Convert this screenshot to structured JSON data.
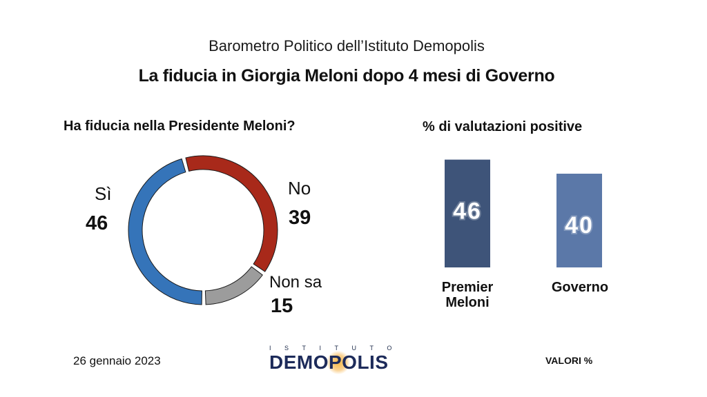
{
  "header": {
    "supertitle": "Barometro Politico dell’Istituto Demopolis",
    "title": "La fiducia in Giorgia Meloni dopo 4 mesi di Governo"
  },
  "footer": {
    "date": "26 gennaio 2023",
    "logo_top": "ISTITUTO",
    "logo_main": "DEMOPOLIS",
    "units": "VALORI %"
  },
  "chart_data": [
    {
      "type": "pie",
      "title": "Ha fiducia nella Presidente Meloni?",
      "donut": true,
      "categories": [
        "Sì",
        "No",
        "Non sa"
      ],
      "values": [
        46,
        39,
        15
      ],
      "value_labels": [
        "46",
        "39",
        "15"
      ],
      "colors": [
        "#3574b9",
        "#a8291a",
        "#9c9c9c"
      ]
    },
    {
      "type": "bar",
      "title": "% di valutazioni positive",
      "categories": [
        "Premier Meloni",
        "Governo"
      ],
      "category_lines": [
        [
          "Premier",
          "Meloni"
        ],
        [
          "Governo"
        ]
      ],
      "values": [
        46,
        40
      ],
      "value_labels": [
        "46",
        "40"
      ],
      "colors": [
        "#3e5479",
        "#5b78a8"
      ],
      "ylim": [
        0,
        100
      ]
    }
  ]
}
